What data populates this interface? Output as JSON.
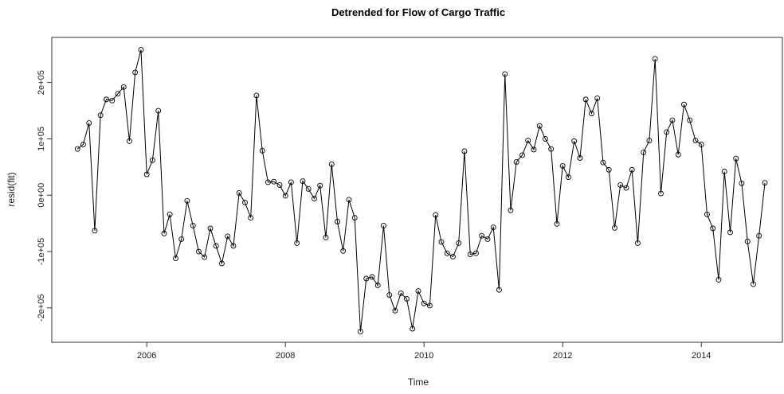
{
  "chart_data": {
    "type": "line",
    "title": "Detrended for Flow of Cargo Traffic",
    "x_label": "Time",
    "y_label": "resid(fit)",
    "x": [
      2005,
      2005.083,
      2005.167,
      2005.25,
      2005.333,
      2005.417,
      2005.5,
      2005.583,
      2005.667,
      2005.75,
      2005.833,
      2005.917,
      2006,
      2006.083,
      2006.167,
      2006.25,
      2006.333,
      2006.417,
      2006.5,
      2006.583,
      2006.667,
      2006.75,
      2006.833,
      2006.917,
      2007,
      2007.083,
      2007.167,
      2007.25,
      2007.333,
      2007.417,
      2007.5,
      2007.583,
      2007.667,
      2007.75,
      2007.833,
      2007.917,
      2008,
      2008.083,
      2008.167,
      2008.25,
      2008.333,
      2008.417,
      2008.5,
      2008.583,
      2008.667,
      2008.75,
      2008.833,
      2008.917,
      2009,
      2009.083,
      2009.167,
      2009.25,
      2009.333,
      2009.417,
      2009.5,
      2009.583,
      2009.667,
      2009.75,
      2009.833,
      2009.917,
      2010,
      2010.083,
      2010.167,
      2010.25,
      2010.333,
      2010.417,
      2010.5,
      2010.583,
      2010.667,
      2010.75,
      2010.833,
      2010.917,
      2011,
      2011.083,
      2011.167,
      2011.25,
      2011.333,
      2011.417,
      2011.5,
      2011.583,
      2011.667,
      2011.75,
      2011.833,
      2011.917,
      2012,
      2012.083,
      2012.167,
      2012.25,
      2012.333,
      2012.417,
      2012.5,
      2012.583,
      2012.667,
      2012.75,
      2012.833,
      2012.917,
      2013,
      2013.083,
      2013.167,
      2013.25,
      2013.333,
      2013.417,
      2013.5,
      2013.583,
      2013.667,
      2013.75,
      2013.833,
      2013.917,
      2014,
      2014.083,
      2014.167,
      2014.25,
      2014.333,
      2014.417,
      2014.5,
      2014.583,
      2014.667,
      2014.75,
      2014.833,
      2014.917
    ],
    "series": [
      {
        "color": "#000000",
        "values": [
          82000,
          90000,
          128000,
          -63000,
          142000,
          170000,
          168000,
          180000,
          192000,
          96000,
          218000,
          258000,
          37000,
          62000,
          150000,
          -68000,
          -34000,
          -112000,
          -78000,
          -10000,
          -54000,
          -100000,
          -110000,
          -59000,
          -90000,
          -121000,
          -73000,
          -90000,
          4000,
          -13000,
          -40000,
          177000,
          79000,
          23000,
          24000,
          18000,
          -1000,
          23000,
          -85000,
          25000,
          11000,
          -6000,
          17000,
          -75000,
          55000,
          -47000,
          -99000,
          -8000,
          -40000,
          -242000,
          -148000,
          -145000,
          -160000,
          -54000,
          -177000,
          -205000,
          -174000,
          -184000,
          -237000,
          -170000,
          -192000,
          -196000,
          -35000,
          -83000,
          -103000,
          -109000,
          -85000,
          78000,
          -105000,
          -103000,
          -72000,
          -78000,
          -57000,
          -168000,
          215000,
          -27000,
          59000,
          71000,
          97000,
          81000,
          123000,
          100000,
          82000,
          -51000,
          52000,
          32000,
          96000,
          66000,
          170000,
          145000,
          172000,
          58000,
          45000,
          -58000,
          18000,
          13000,
          45000,
          -85000,
          76000,
          97000,
          242000,
          3000,
          112000,
          133000,
          72000,
          161000,
          133000,
          97000,
          90000,
          -34000,
          -59000,
          -150000,
          42000,
          -66000,
          65000,
          21000,
          -82000,
          -158000,
          -72000,
          22000
        ]
      }
    ],
    "xlim": [
      2004.63,
      2015.17
    ],
    "ylim": [
      -261000,
      280000
    ],
    "xticks": [
      2006,
      2008,
      2010,
      2012,
      2014
    ],
    "yticks": [
      {
        "value": -200000,
        "label": "-2e+05"
      },
      {
        "value": -100000,
        "label": "-1e+05"
      },
      {
        "value": 0,
        "label": "0e+00"
      },
      {
        "value": 100000,
        "label": "1e+05"
      },
      {
        "value": 200000,
        "label": "2e+05"
      }
    ],
    "markers": true
  }
}
